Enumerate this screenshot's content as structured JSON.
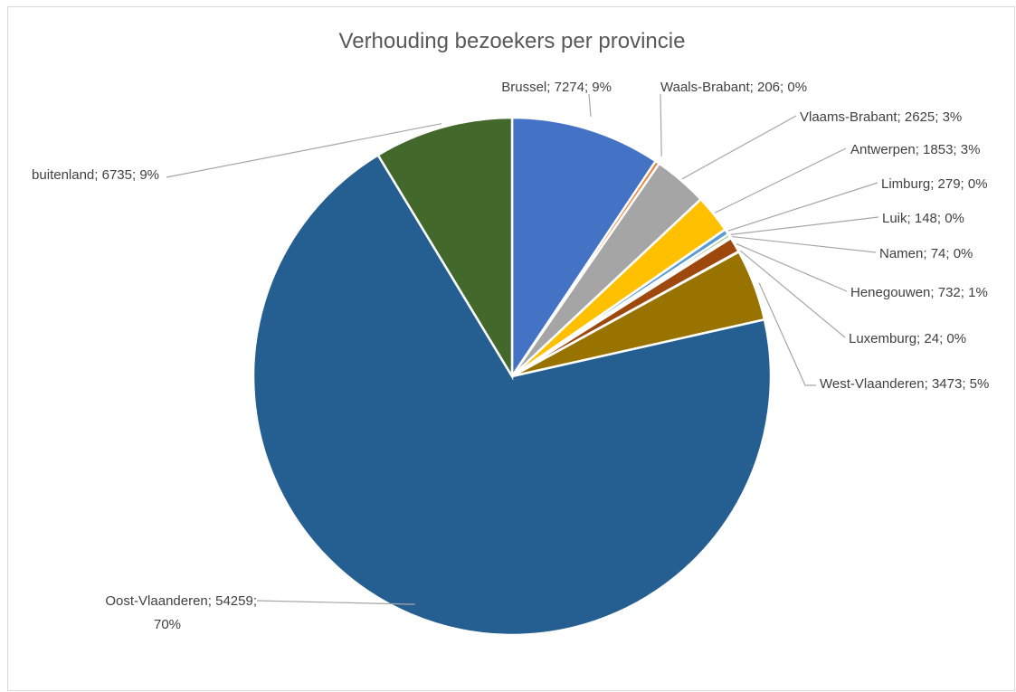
{
  "chart_data": {
    "type": "pie",
    "title": "Verhouding bezoekers per provincie",
    "start_angle_deg": 0,
    "direction": "clockwise",
    "slices": [
      {
        "name": "Brussel",
        "value": 7274,
        "percent_label": "9%",
        "color": "#4472C4",
        "label_line1": "Brussel; 7274; 9%"
      },
      {
        "name": "Waals-Brabant",
        "value": 206,
        "percent_label": "0%",
        "color": "#ED7D31",
        "label_line1": "Waals-Brabant; 206; 0%"
      },
      {
        "name": "Vlaams-Brabant",
        "value": 2625,
        "percent_label": "3%",
        "color": "#A5A5A5",
        "label_line1": "Vlaams-Brabant; 2625; 3%"
      },
      {
        "name": "Antwerpen",
        "value": 1853,
        "percent_label": "3%",
        "color": "#FFC000",
        "label_line1": "Antwerpen; 1853; 3%"
      },
      {
        "name": "Limburg",
        "value": 279,
        "percent_label": "0%",
        "color": "#5B9BD5",
        "label_line1": "Limburg; 279; 0%"
      },
      {
        "name": "Luik",
        "value": 148,
        "percent_label": "0%",
        "color": "#70AD47",
        "label_line1": "Luik; 148; 0%"
      },
      {
        "name": "Namen",
        "value": 74,
        "percent_label": "0%",
        "color": "#264478",
        "label_line1": "Namen; 74; 0%"
      },
      {
        "name": "Henegouwen",
        "value": 732,
        "percent_label": "1%",
        "color": "#9E480E",
        "label_line1": "Henegouwen; 732; 1%"
      },
      {
        "name": "Luxemburg",
        "value": 24,
        "percent_label": "0%",
        "color": "#636363",
        "label_line1": "Luxemburg; 24; 0%"
      },
      {
        "name": "West-Vlaanderen",
        "value": 3473,
        "percent_label": "5%",
        "color": "#997300",
        "label_line1": "West-Vlaanderen; 3473; 5%"
      },
      {
        "name": "Oost-Vlaanderen",
        "value": 54259,
        "percent_label": "70%",
        "color": "#255E91",
        "label_line1": "Oost-Vlaanderen; 54259;",
        "label_line2": "70%"
      },
      {
        "name": "buitenland",
        "value": 6735,
        "percent_label": "9%",
        "color": "#43682B",
        "label_line1": "buitenland; 6735; 9%"
      }
    ]
  }
}
